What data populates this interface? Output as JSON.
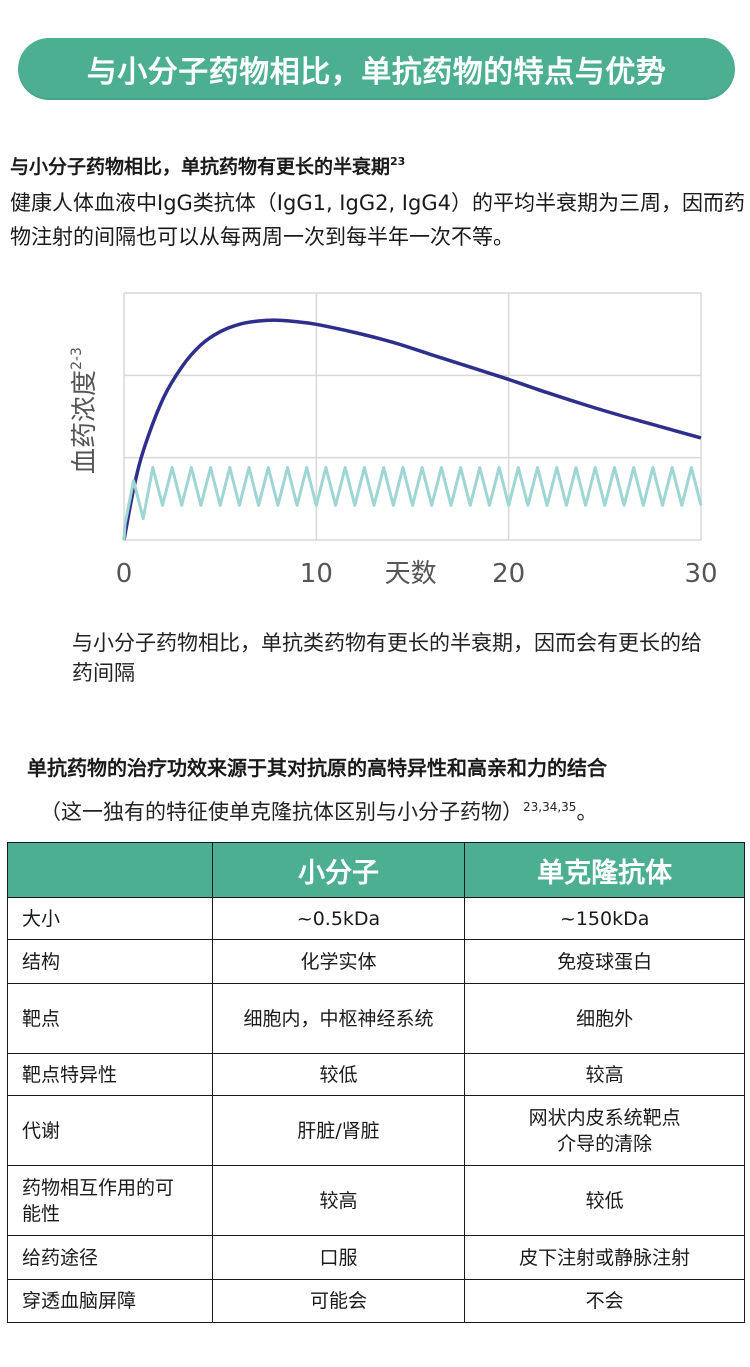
{
  "banner": {
    "title": "与小分子药物相比，单抗药物的特点与优势"
  },
  "section1": {
    "title": "与小分子药物相比，单抗药物有更长的半衰期",
    "title_ref": "23",
    "body": "健康人体血液中IgG类抗体（IgG1, IgG2, IgG4）的平均半衰期为三周，因而药物注射的间隔也可以从每两周一次到每半年一次不等。"
  },
  "chart_data": {
    "type": "line",
    "xlabel": "天数",
    "ylabel": "血药浓度",
    "ylabel_ref": "2-3",
    "xlim": [
      0,
      30
    ],
    "ylim": [
      0,
      3
    ],
    "xticks": [
      "0",
      "10",
      "20",
      "30"
    ],
    "grid": true,
    "series": [
      {
        "color": "#2e2e8c",
        "x": [
          0,
          0.5,
          1,
          2,
          3,
          4,
          5,
          6,
          7,
          8,
          9,
          10,
          12,
          14,
          16,
          18,
          20,
          22,
          24,
          26,
          28,
          30
        ],
        "y": [
          0,
          0.62,
          1.08,
          1.7,
          2.1,
          2.37,
          2.53,
          2.62,
          2.66,
          2.67,
          2.65,
          2.62,
          2.52,
          2.4,
          2.25,
          2.1,
          1.95,
          1.79,
          1.64,
          1.5,
          1.37,
          1.24
        ]
      },
      {
        "color": "#9fd6d3",
        "pattern": "oscillating",
        "period_days": 1,
        "x_start": 0,
        "y_peak": 0.88,
        "y_trough": 0.42
      }
    ]
  },
  "caption": "与小分子药物相比，单抗类药物有更长的半衰期，因而会有更长的给药间隔",
  "section2": {
    "title": "单抗药物的治疗功效来源于其对抗原的高特异性和高亲和力的结合",
    "sub": "（这一独有的特征使单克隆抗体区别与小分子药物）",
    "sub_ref": "23,34,35",
    "sub_end": "。"
  },
  "table": {
    "headers": [
      "",
      "小分子",
      "单克隆抗体"
    ],
    "rows": [
      [
        "大小",
        "~0.5kDa",
        "~150kDa"
      ],
      [
        "结构",
        "化学实体",
        "免疫球蛋白"
      ],
      [
        "靶点",
        "细胞内，中枢神经系统",
        "细胞外"
      ],
      [
        "靶点特异性",
        "较低",
        "较高"
      ],
      [
        "代谢",
        "肝脏/肾脏",
        "网状内皮系统靶点介导的清除"
      ],
      [
        "药物相互作用的可能性",
        "较高",
        "较低"
      ],
      [
        "给药途径",
        "口服",
        "皮下注射或静脉注射"
      ],
      [
        "穿透血脑屏障",
        "可能会",
        "不会"
      ]
    ]
  }
}
